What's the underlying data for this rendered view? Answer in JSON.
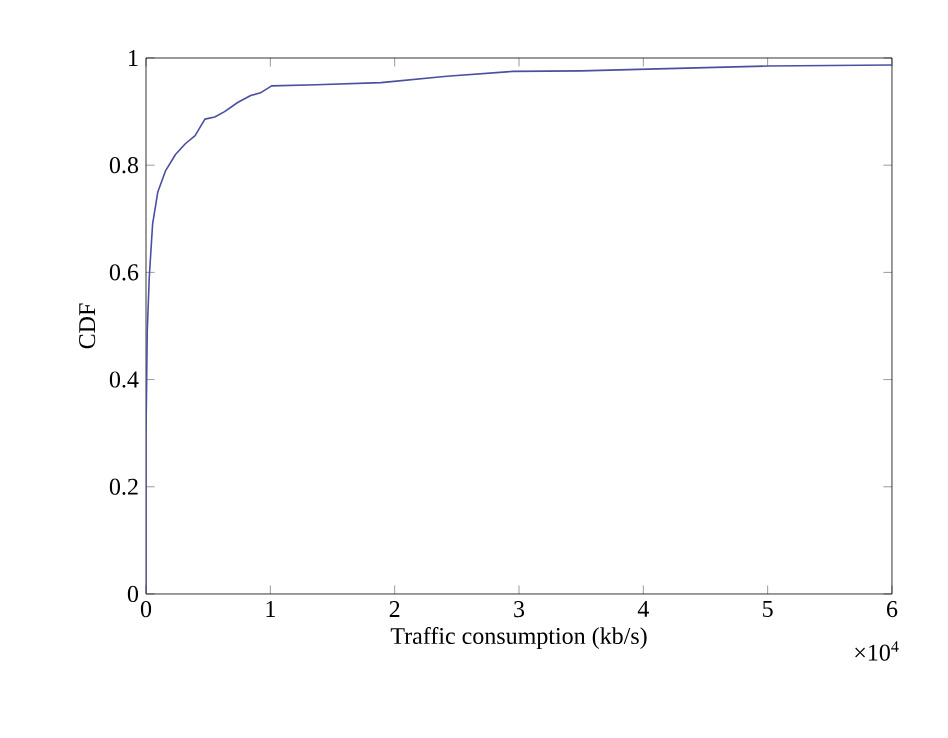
{
  "chart_data": {
    "type": "line",
    "xlabel": "Traffic consumption (kb/s)",
    "ylabel": "CDF",
    "annotations": [
      "×10$^{4}$"
    ],
    "xlim": [
      0,
      6
    ],
    "xticks": [
      0,
      1,
      2,
      3,
      4,
      5,
      6
    ],
    "ylim": [
      0,
      1
    ],
    "yticks": [
      0,
      0.2,
      0.4,
      0.6,
      0.8,
      1
    ],
    "grid": false,
    "marker": "none",
    "line_style": "solid",
    "series": [
      {
        "color": "#4a4fa0",
        "x": [
          0,
          0,
          0.01,
          0.026,
          0.053,
          0.095,
          0.158,
          0.237,
          0.316,
          0.395,
          0.474,
          0.553,
          0.632,
          0.737,
          0.842,
          0.921,
          1.01,
          1.37,
          1.89,
          2.42,
          2.95,
          3.5,
          4.0,
          4.5,
          5.0,
          5.5,
          6.0
        ],
        "values": [
          0,
          0.3,
          0.49,
          0.59,
          0.69,
          0.75,
          0.79,
          0.82,
          0.84,
          0.855,
          0.886,
          0.89,
          0.9,
          0.917,
          0.93,
          0.935,
          0.948,
          0.95,
          0.954,
          0.966,
          0.975,
          0.976,
          0.979,
          0.982,
          0.985,
          0.986,
          0.987
        ]
      }
    ]
  }
}
